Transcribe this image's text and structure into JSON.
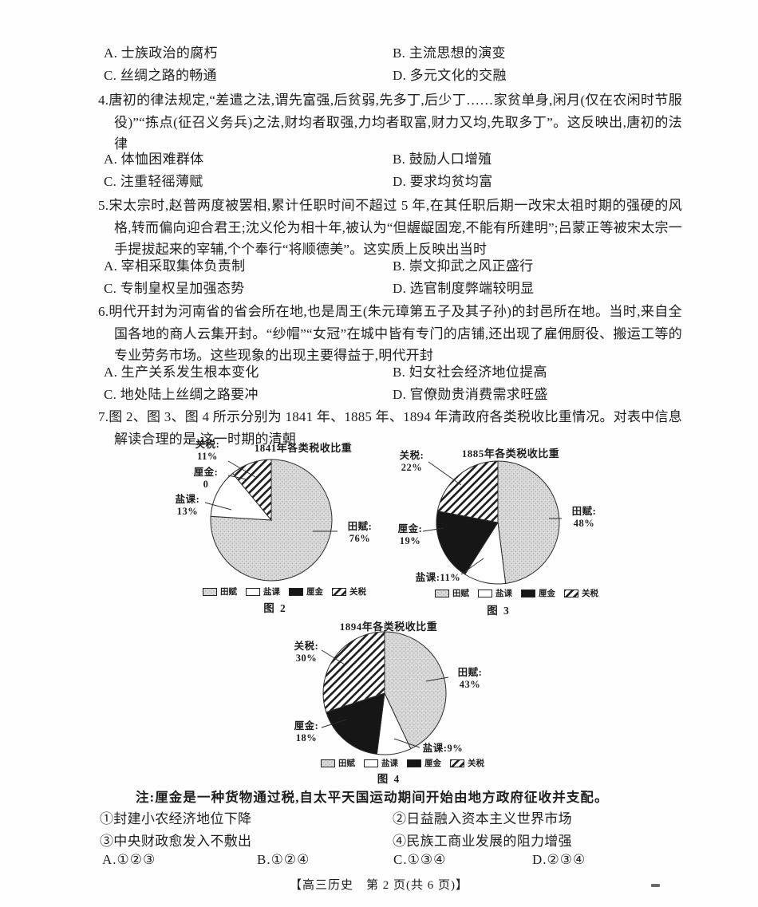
{
  "page": {
    "footer": "【高三历史　第 2 页(共 6 页)】"
  },
  "q3_options": {
    "a": "A. 士族政治的腐朽",
    "b": "B. 主流思想的演变",
    "c": "C. 丝绸之路的畅通",
    "d": "D. 多元文化的交融"
  },
  "q4": {
    "stem": "4.唐初的律法规定,“差遣之法,谓先富强,后贫弱,先多丁,后少丁……家贫单身,闲月(仅在农闲时节服役)”“拣点(征召义务兵)之法,财均者取强,力均者取富,财力又均,先取多丁”。这反映出,唐初的法律",
    "a": "A. 体恤困难群体",
    "b": "B. 鼓励人口增殖",
    "c": "C. 注重轻徭薄赋",
    "d": "D. 要求均贫均富"
  },
  "q5": {
    "stem": "5.宋太宗时,赵普两度被罢相,累计任职时间不超过 5 年,在其任职后期一改宋太祖时期的强硬的风格,转而偏向迎合君王;沈义伦为相十年,被认为“但龌龊固宠,不能有所建明”;吕蒙正等被宋太宗一手提拔起来的宰辅,个个奉行“将顺德美”。这实质上反映出当时",
    "a": "A. 宰相采取集体负责制",
    "b": "B. 崇文抑武之风正盛行",
    "c": "C. 专制皇权呈加强态势",
    "d": "D. 选官制度弊端较明显"
  },
  "q6": {
    "stem": "6.明代开封为河南省的省会所在地,也是周王(朱元璋第五子及其子孙)的封邑所在地。当时,来自全国各地的商人云集开封。“纱帽”“女冠”在城中皆有专门的店铺,还出现了雇佣厨役、搬运工等的专业劳务市场。这些现象的出现主要得益于,明代开封",
    "a": "A. 生产关系发生根本变化",
    "b": "B. 妇女社会经济地位提高",
    "c": "C. 地处陆上丝绸之路要冲",
    "d": "D. 官僚勋贵消费需求旺盛"
  },
  "q7": {
    "stem": "7.图 2、图 3、图 4 所示分别为 1841 年、1885 年、1894 年清政府各类税收比重情况。对表中信息解读合理的是,这一时期的清朝",
    "note": "注:厘金是一种货物通过税,自太平天国运动期间开始由地方政府征收并支配。",
    "statements": {
      "s1": "①封建小农经济地位下降",
      "s2": "②日益融入资本主义世界市场",
      "s3": "③中央财政愈发入不敷出",
      "s4": "④民族工商业发展的阻力增强"
    },
    "options": {
      "a": "A.①②③",
      "b": "B.①②④",
      "c": "C.①③④",
      "d": "D.②③④"
    }
  },
  "chart_data": [
    {
      "type": "pie",
      "title": "1841年各类税收比重",
      "figure_label": "图 2",
      "value_unit": "%",
      "legend_position": "bottom",
      "slices": [
        {
          "name": "田赋",
          "value": 76,
          "callout": "田赋:\n76%",
          "fill": "dots"
        },
        {
          "name": "盐课",
          "value": 13,
          "callout": "盐课:\n13%",
          "fill": "white"
        },
        {
          "name": "厘金",
          "value": 0,
          "callout": "厘金:\n0",
          "fill": "black"
        },
        {
          "name": "关税",
          "value": 11,
          "callout": "关税:\n11%",
          "fill": "hatch"
        }
      ]
    },
    {
      "type": "pie",
      "title": "1885年各类税收比重",
      "figure_label": "图 3",
      "value_unit": "%",
      "legend_position": "bottom",
      "slices": [
        {
          "name": "田赋",
          "value": 48,
          "callout": "田赋:\n48%",
          "fill": "dots"
        },
        {
          "name": "盐课",
          "value": 11,
          "callout": "盐课:11%",
          "fill": "white"
        },
        {
          "name": "厘金",
          "value": 19,
          "callout": "厘金:\n19%",
          "fill": "black"
        },
        {
          "name": "关税",
          "value": 22,
          "callout": "关税:\n22%",
          "fill": "hatch"
        }
      ]
    },
    {
      "type": "pie",
      "title": "1894年各类税收比重",
      "figure_label": "图 4",
      "value_unit": "%",
      "legend_position": "bottom",
      "slices": [
        {
          "name": "田赋",
          "value": 43,
          "callout": "田赋:\n43%",
          "fill": "dots"
        },
        {
          "name": "盐课",
          "value": 9,
          "callout": "盐课:9%",
          "fill": "white"
        },
        {
          "name": "厘金",
          "value": 18,
          "callout": "厘金:\n18%",
          "fill": "black"
        },
        {
          "name": "关税",
          "value": 30,
          "callout": "关税:\n30%",
          "fill": "hatch"
        }
      ]
    }
  ]
}
